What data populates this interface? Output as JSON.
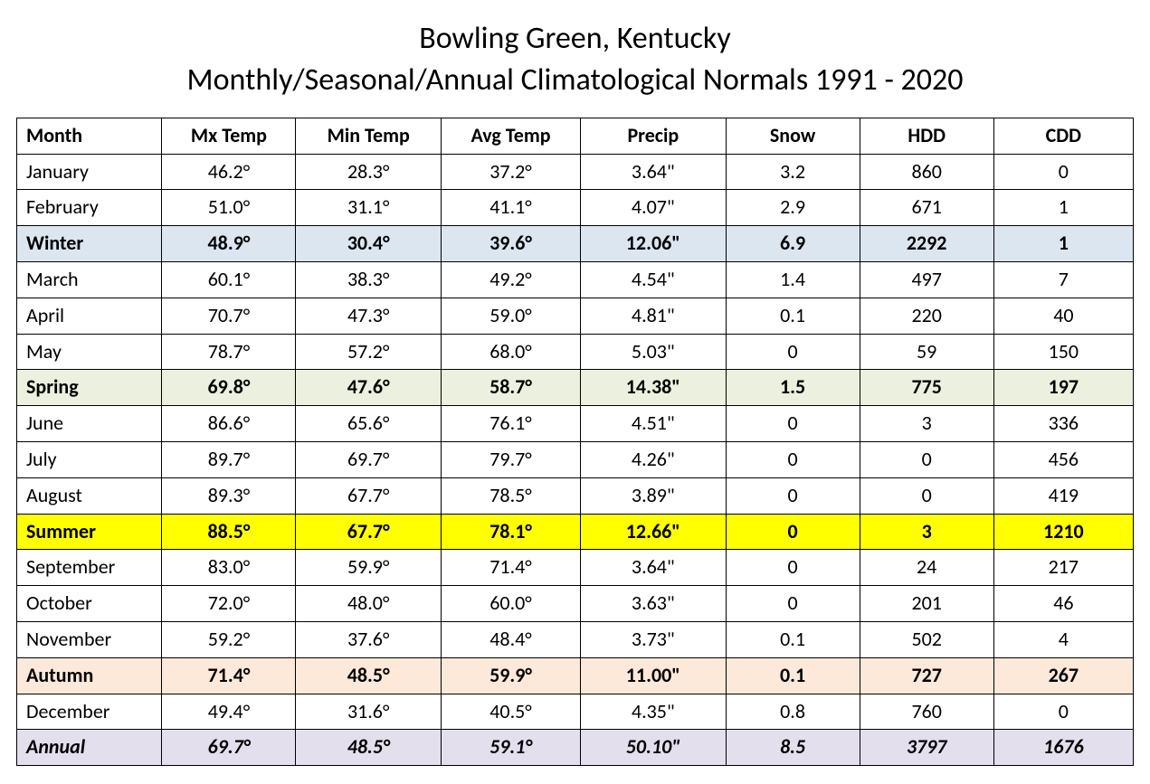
{
  "title": {
    "line1": "Bowling Green, Kentucky",
    "line2": "Monthly/Seasonal/Annual Climatological Normals 1991 - 2020"
  },
  "title_fontsize": 34,
  "cell_fontsize": 22,
  "text_color": "#000000",
  "border_color": "#000000",
  "background_color": "#ffffff",
  "columns": [
    {
      "key": "month",
      "label": "Month",
      "align": "left"
    },
    {
      "key": "mx",
      "label": "Mx Temp",
      "align": "center"
    },
    {
      "key": "min",
      "label": "Min Temp",
      "align": "center"
    },
    {
      "key": "avg",
      "label": "Avg Temp",
      "align": "center"
    },
    {
      "key": "precip",
      "label": "Precip",
      "align": "center"
    },
    {
      "key": "snow",
      "label": "Snow",
      "align": "center"
    },
    {
      "key": "hdd",
      "label": "HDD",
      "align": "center"
    },
    {
      "key": "cdd",
      "label": "CDD",
      "align": "center"
    }
  ],
  "row_colors": {
    "month": "#ffffff",
    "winter": "#dce6f1",
    "spring": "#ebf1de",
    "summer": "#ffff00",
    "autumn": "#fde9d9",
    "annual": "#e4dfec"
  },
  "rows": [
    {
      "type": "month",
      "month": "January",
      "mx": "46.2°",
      "min": "28.3°",
      "avg": "37.2°",
      "precip": "3.64\"",
      "snow": "3.2",
      "hdd": "860",
      "cdd": "0"
    },
    {
      "type": "month",
      "month": "February",
      "mx": "51.0°",
      "min": "31.1°",
      "avg": "41.1°",
      "precip": "4.07\"",
      "snow": "2.9",
      "hdd": "671",
      "cdd": "1"
    },
    {
      "type": "season",
      "season_key": "winter",
      "month": "Winter",
      "mx": "48.9°",
      "min": "30.4°",
      "avg": "39.6°",
      "precip": "12.06\"",
      "snow": "6.9",
      "hdd": "2292",
      "cdd": "1"
    },
    {
      "type": "month",
      "month": "March",
      "mx": "60.1°",
      "min": "38.3°",
      "avg": "49.2°",
      "precip": "4.54\"",
      "snow": "1.4",
      "hdd": "497",
      "cdd": "7"
    },
    {
      "type": "month",
      "month": "April",
      "mx": "70.7°",
      "min": "47.3°",
      "avg": "59.0°",
      "precip": "4.81\"",
      "snow": "0.1",
      "hdd": "220",
      "cdd": "40"
    },
    {
      "type": "month",
      "month": "May",
      "mx": "78.7°",
      "min": "57.2°",
      "avg": "68.0°",
      "precip": "5.03\"",
      "snow": "0",
      "hdd": "59",
      "cdd": "150"
    },
    {
      "type": "season",
      "season_key": "spring",
      "month": "Spring",
      "mx": "69.8°",
      "min": "47.6°",
      "avg": "58.7°",
      "precip": "14.38\"",
      "snow": "1.5",
      "hdd": "775",
      "cdd": "197"
    },
    {
      "type": "month",
      "month": "June",
      "mx": "86.6°",
      "min": "65.6°",
      "avg": "76.1°",
      "precip": "4.51\"",
      "snow": "0",
      "hdd": "3",
      "cdd": "336"
    },
    {
      "type": "month",
      "month": "July",
      "mx": "89.7°",
      "min": "69.7°",
      "avg": "79.7°",
      "precip": "4.26\"",
      "snow": "0",
      "hdd": "0",
      "cdd": "456"
    },
    {
      "type": "month",
      "month": "August",
      "mx": "89.3°",
      "min": "67.7°",
      "avg": "78.5°",
      "precip": "3.89\"",
      "snow": "0",
      "hdd": "0",
      "cdd": "419"
    },
    {
      "type": "season",
      "season_key": "summer",
      "month": "Summer",
      "mx": "88.5°",
      "min": "67.7°",
      "avg": "78.1°",
      "precip": "12.66\"",
      "snow": "0",
      "hdd": "3",
      "cdd": "1210"
    },
    {
      "type": "month",
      "month": "September",
      "mx": "83.0°",
      "min": "59.9°",
      "avg": "71.4°",
      "precip": "3.64\"",
      "snow": "0",
      "hdd": "24",
      "cdd": "217"
    },
    {
      "type": "month",
      "month": "October",
      "mx": "72.0°",
      "min": "48.0°",
      "avg": "60.0°",
      "precip": "3.63\"",
      "snow": "0",
      "hdd": "201",
      "cdd": "46"
    },
    {
      "type": "month",
      "month": "November",
      "mx": "59.2°",
      "min": "37.6°",
      "avg": "48.4°",
      "precip": "3.73\"",
      "snow": "0.1",
      "hdd": "502",
      "cdd": "4"
    },
    {
      "type": "season",
      "season_key": "autumn",
      "month": "Autumn",
      "mx": "71.4°",
      "min": "48.5°",
      "avg": "59.9°",
      "precip": "11.00\"",
      "snow": "0.1",
      "hdd": "727",
      "cdd": "267"
    },
    {
      "type": "month",
      "month": "December",
      "mx": "49.4°",
      "min": "31.6°",
      "avg": "40.5°",
      "precip": "4.35\"",
      "snow": "0.8",
      "hdd": "760",
      "cdd": "0"
    },
    {
      "type": "annual",
      "month": "Annual",
      "mx": "69.7°",
      "min": "48.5°",
      "avg": "59.1°",
      "precip": "50.10\"",
      "snow": "8.5",
      "hdd": "3797",
      "cdd": "1676"
    }
  ]
}
